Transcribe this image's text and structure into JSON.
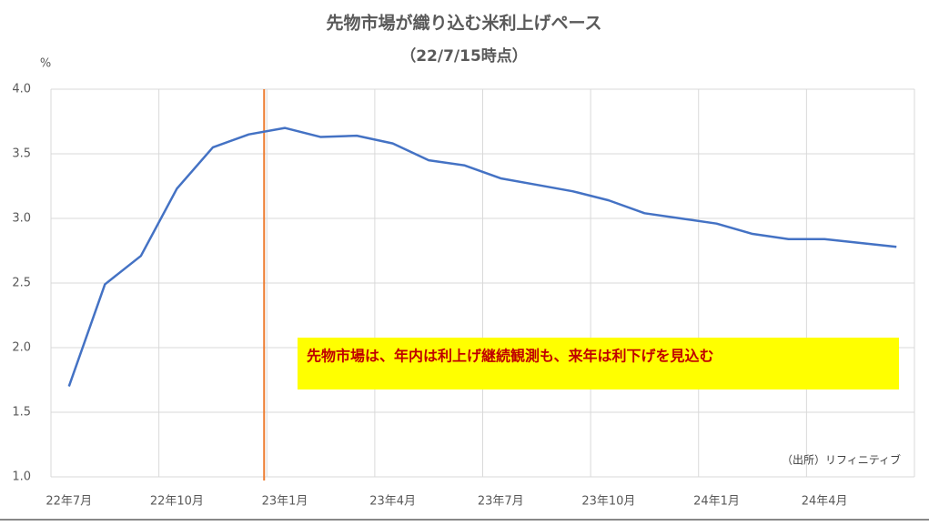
{
  "chart_data": {
    "type": "line",
    "title": "先物市場が織り込む米利上げペース",
    "subtitle": "（22/7/15時点）",
    "y_unit": "%",
    "annotation": "先物市場は、年内は利上げ継続観測も、来年は利下げを見込む",
    "source": "（出所）リフィニティブ",
    "categories": [
      "22年7月",
      null,
      null,
      "22年10月",
      null,
      null,
      "23年1月",
      null,
      null,
      "23年4月",
      null,
      null,
      "23年7月",
      null,
      null,
      "23年10月",
      null,
      null,
      "24年1月",
      null,
      null,
      "24年4月",
      null,
      null
    ],
    "series": [
      {
        "color": "#4472c4",
        "values": [
          1.7,
          2.49,
          2.71,
          3.23,
          3.55,
          3.65,
          3.7,
          3.63,
          3.64,
          3.58,
          3.45,
          3.41,
          3.31,
          3.26,
          3.21,
          3.14,
          3.04,
          3.0,
          2.96,
          2.88,
          2.84,
          2.84,
          2.81,
          2.78
        ]
      }
    ],
    "ylim": [
      1,
      4
    ],
    "yticks": [
      {
        "value": 1,
        "label": "1.0"
      },
      {
        "value": 1.5,
        "label": "1.5"
      },
      {
        "value": 2,
        "label": "2.0"
      },
      {
        "value": 2.5,
        "label": "2.5"
      },
      {
        "value": 3,
        "label": "3.0"
      },
      {
        "value": 3.5,
        "label": "3.5"
      },
      {
        "value": 4,
        "label": "4.0"
      }
    ],
    "grid": true
  }
}
